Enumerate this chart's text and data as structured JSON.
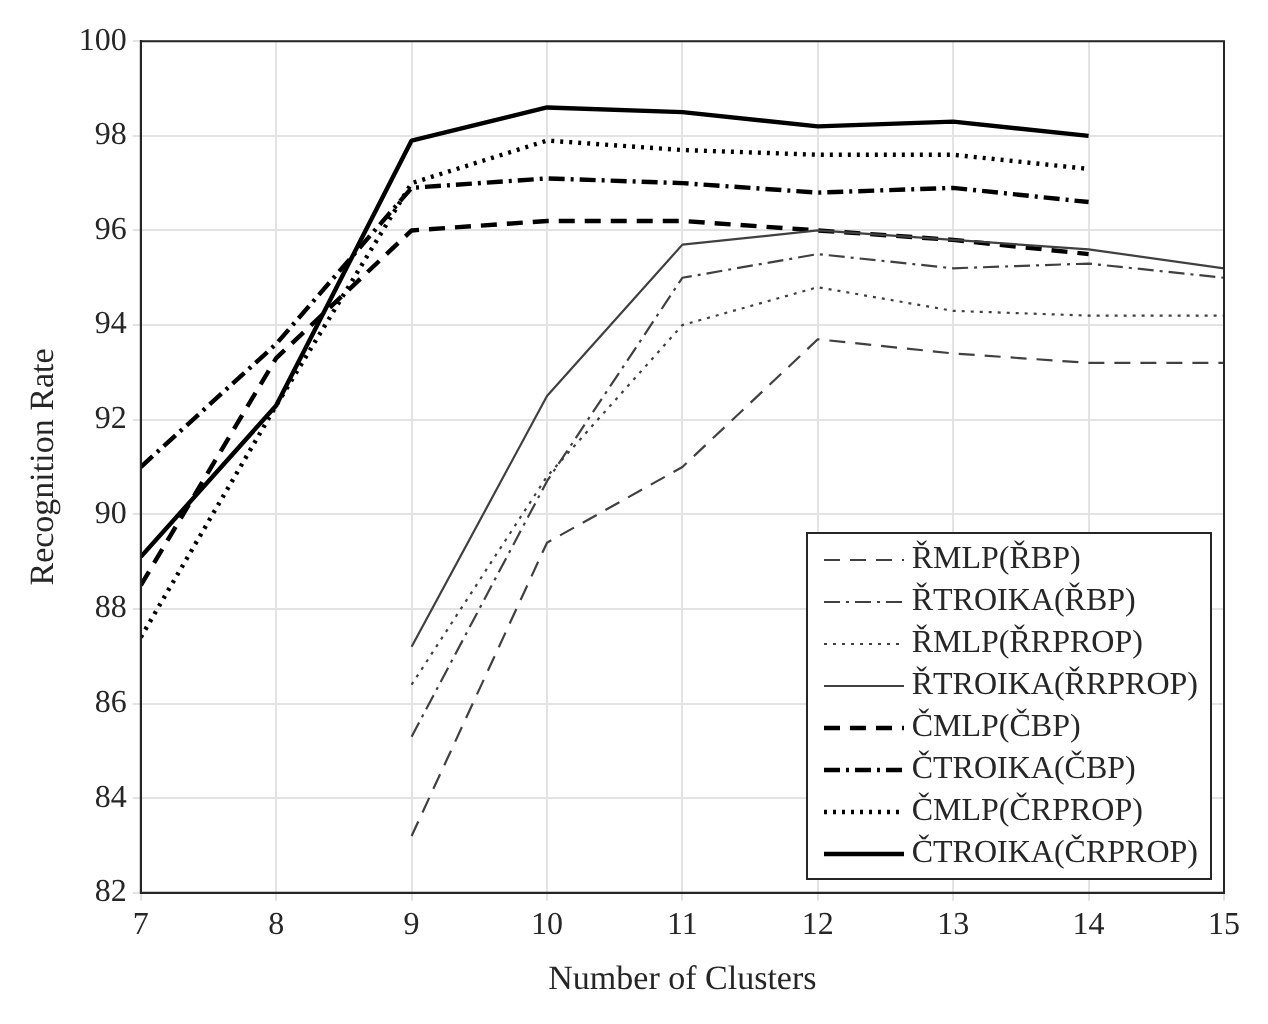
{
  "chart_data": {
    "type": "line",
    "xlabel": "Number of Clusters",
    "ylabel": "Recognition Rate",
    "xlim": [
      7,
      15
    ],
    "xticks": [
      7,
      8,
      9,
      10,
      11,
      12,
      13,
      14,
      15
    ],
    "ylim": [
      82,
      100
    ],
    "yticks": [
      82,
      84,
      86,
      88,
      90,
      92,
      94,
      96,
      98,
      100
    ],
    "grid": true,
    "legend": "bottom right",
    "marker": "none",
    "series": [
      {
        "name": "ŘMLP(ŘBP)",
        "color": "#404040",
        "line_style": "dashed",
        "x": [
          9,
          10,
          11,
          12,
          13,
          14,
          15
        ],
        "values": [
          83.2,
          89.4,
          91.0,
          93.7,
          93.4,
          93.2,
          93.2
        ]
      },
      {
        "name": "ŘTROIKA(ŘBP)",
        "color": "#404040",
        "line_style": "dashdot",
        "x": [
          9,
          10,
          11,
          12,
          13,
          14,
          15
        ],
        "values": [
          85.3,
          90.7,
          95.0,
          95.5,
          95.2,
          95.3,
          95.0
        ]
      },
      {
        "name": "ŘMLP(ŘRPROP)",
        "color": "#404040",
        "line_style": "dotted",
        "x": [
          9,
          10,
          11,
          12,
          13,
          14,
          15
        ],
        "values": [
          86.4,
          90.8,
          94.0,
          94.8,
          94.3,
          94.2,
          94.2
        ]
      },
      {
        "name": "ŘTROIKA(ŘRPROP)",
        "color": "#404040",
        "line_style": "solid",
        "x": [
          9,
          10,
          11,
          12,
          13,
          14,
          15
        ],
        "values": [
          87.2,
          92.5,
          95.7,
          96.0,
          95.8,
          95.6,
          95.2
        ]
      },
      {
        "name": "ČMLP(ČBP)",
        "color": "#000000",
        "line_style": "dashed",
        "x": [
          7,
          8,
          9,
          10,
          11,
          12,
          13,
          14
        ],
        "values": [
          88.5,
          93.3,
          96.0,
          96.2,
          96.2,
          96.0,
          95.8,
          95.5
        ]
      },
      {
        "name": "ČTROIKA(ČBP)",
        "color": "#000000",
        "line_style": "dashdot",
        "x": [
          7,
          8,
          9,
          10,
          11,
          12,
          13,
          14
        ],
        "values": [
          91.0,
          93.6,
          96.9,
          97.1,
          97.0,
          96.8,
          96.9,
          96.6
        ]
      },
      {
        "name": "ČMLP(ČRPROP)",
        "color": "#000000",
        "line_style": "dotted",
        "x": [
          7,
          8,
          9,
          10,
          11,
          12,
          13,
          14
        ],
        "values": [
          87.4,
          92.3,
          97.0,
          97.9,
          97.7,
          97.6,
          97.6,
          97.3
        ]
      },
      {
        "name": "ČTROIKA(ČRPROP)",
        "color": "#000000",
        "line_style": "solid",
        "x": [
          7,
          8,
          9,
          10,
          11,
          12,
          13,
          14
        ],
        "values": [
          89.1,
          92.3,
          97.9,
          98.6,
          98.5,
          98.2,
          98.3,
          98.0
        ]
      }
    ]
  }
}
